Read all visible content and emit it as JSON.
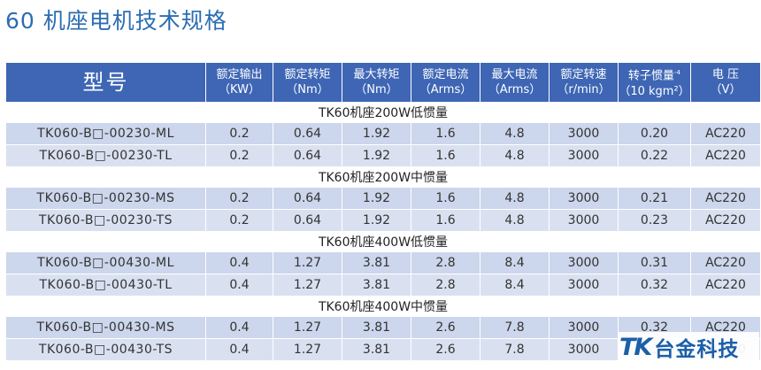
{
  "title": "60 机座电机技术规格",
  "columns": [
    {
      "label": "型号",
      "unit": ""
    },
    {
      "label": "额定输出",
      "unit": "（KW）"
    },
    {
      "label": "额定转矩",
      "unit": "（Nm）"
    },
    {
      "label": "最大转矩",
      "unit": "（Nm）"
    },
    {
      "label": "额定电流",
      "unit": "（Arms）"
    },
    {
      "label": "最大电流",
      "unit": "（Arms）"
    },
    {
      "label": "额定转速",
      "unit": "（r/min）"
    },
    {
      "label": "转子惯量",
      "unit": "（10 kgm²）",
      "exp": "-4"
    },
    {
      "label": "电 压",
      "unit": "（V）"
    }
  ],
  "groups": [
    {
      "title": "TK60机座200W低惯量",
      "rows": [
        [
          "TK060-B□-00230-ML",
          "0.2",
          "0.64",
          "1.92",
          "1.6",
          "4.8",
          "3000",
          "0.20",
          "AC220"
        ],
        [
          "TK060-B□-00230-TL",
          "0.2",
          "0.64",
          "1.92",
          "1.6",
          "4.8",
          "3000",
          "0.22",
          "AC220"
        ]
      ]
    },
    {
      "title": "TK60机座200W中惯量",
      "rows": [
        [
          "TK060-B□-00230-MS",
          "0.2",
          "0.64",
          "1.92",
          "1.6",
          "4.8",
          "3000",
          "0.21",
          "AC220"
        ],
        [
          "TK060-B□-00230-TS",
          "0.2",
          "0.64",
          "1.92",
          "1.6",
          "4.8",
          "3000",
          "0.23",
          "AC220"
        ]
      ]
    },
    {
      "title": "TK60机座400W低惯量",
      "rows": [
        [
          "TK060-B□-00430-ML",
          "0.4",
          "1.27",
          "3.81",
          "2.8",
          "8.4",
          "3000",
          "0.31",
          "AC220"
        ],
        [
          "TK060-B□-00430-TL",
          "0.4",
          "1.27",
          "3.81",
          "2.8",
          "8.4",
          "3000",
          "0.32",
          "AC220"
        ]
      ]
    },
    {
      "title": "TK60机座400W中惯量",
      "rows": [
        [
          "TK060-B□-00430-MS",
          "0.4",
          "1.27",
          "3.81",
          "2.6",
          "7.8",
          "3000",
          "0.32",
          "AC220"
        ],
        [
          "TK060-B□-00430-TS",
          "0.4",
          "1.27",
          "3.81",
          "2.6",
          "7.8",
          "3000",
          "0.37",
          "AC220"
        ]
      ]
    }
  ],
  "logo": {
    "mark": "TK",
    "text": "台金科技",
    "color": "#1a5fa8"
  },
  "colors": {
    "header_bg": "#3e66b4",
    "row_bg": "#ccd6ec",
    "title": "#2b6db3"
  }
}
